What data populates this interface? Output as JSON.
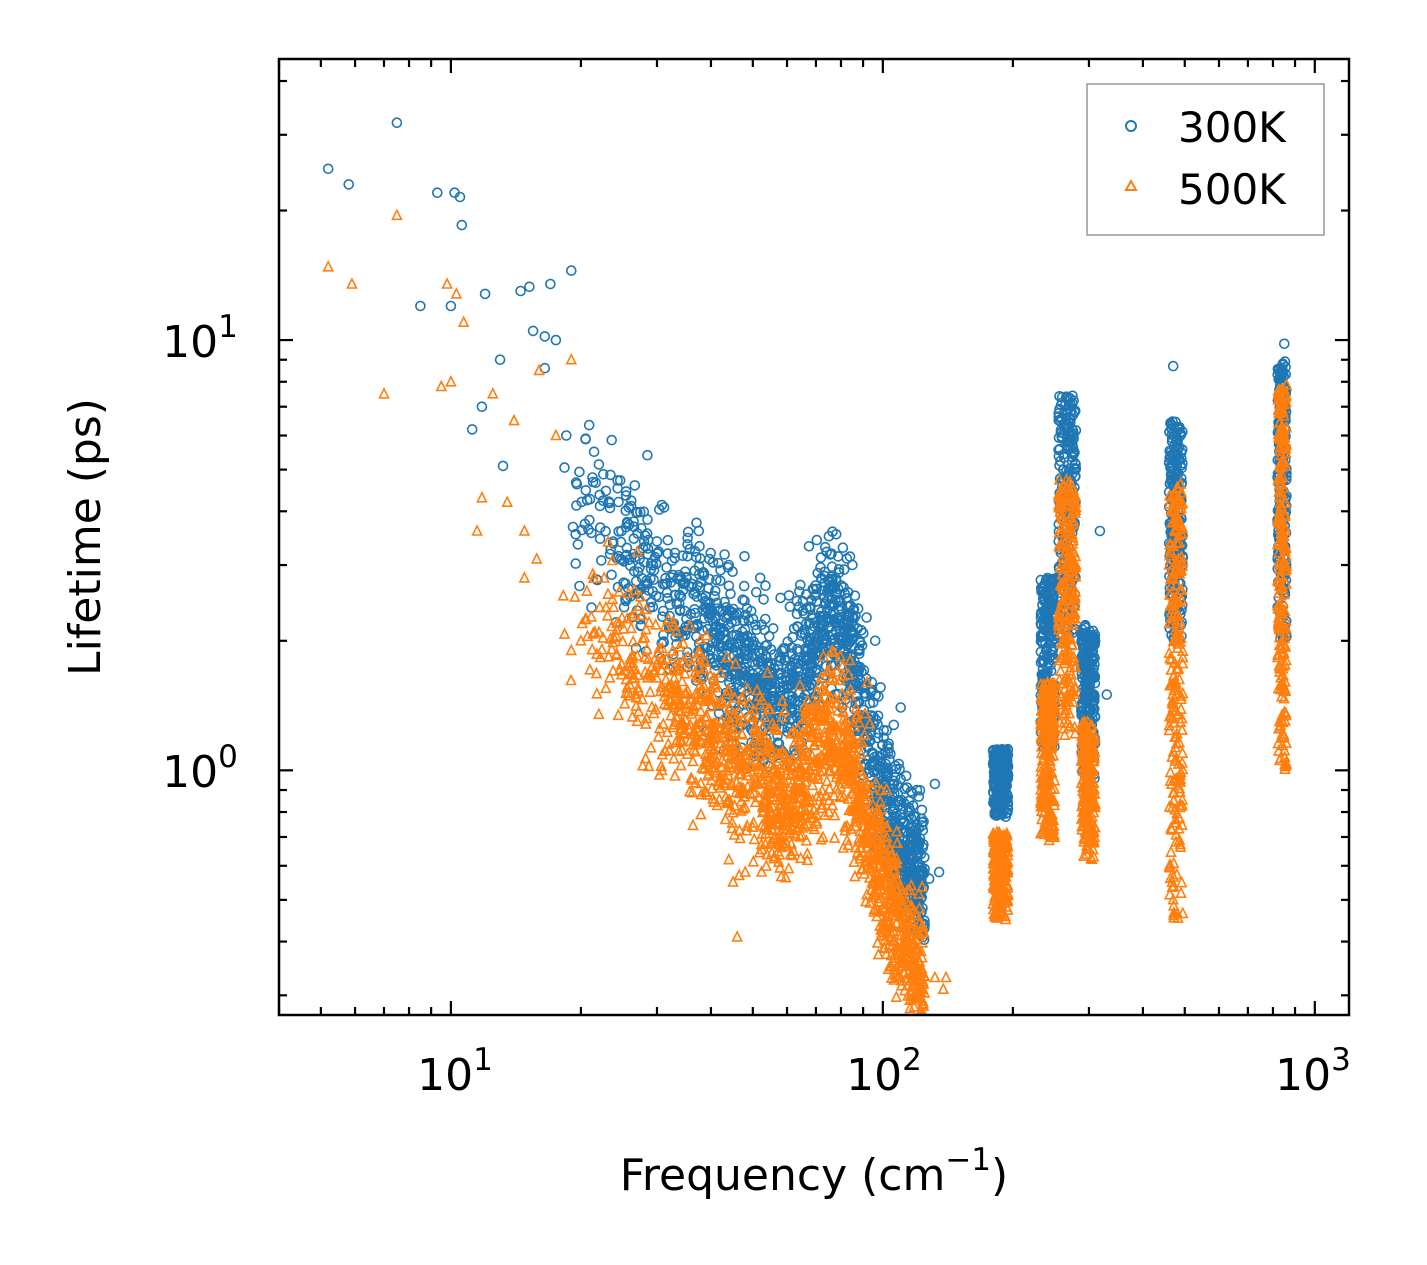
{
  "chart_data": {
    "type": "scatter",
    "xscale": "log",
    "yscale": "log",
    "xlim": [
      4.0,
      1200
    ],
    "ylim": [
      0.27,
      45
    ],
    "xlabel_main": "Frequency (cm",
    "xlabel_sup": "−1",
    "xlabel_end": ")",
    "ylabel": "Lifetime (ps)",
    "xticks": [
      {
        "base": "10",
        "exp": "1"
      },
      {
        "base": "10",
        "exp": "2"
      },
      {
        "base": "10",
        "exp": "3"
      }
    ],
    "yticks": [
      {
        "base": "10",
        "exp": "0"
      },
      {
        "base": "10",
        "exp": "1"
      }
    ],
    "legend_position": "top-right",
    "series": [
      {
        "name": "300K",
        "marker": "circle",
        "color": "#1f77b4",
        "sample_points": [
          [
            7.5,
            32
          ],
          [
            5.2,
            25
          ],
          [
            5.8,
            23
          ],
          [
            9.3,
            22
          ],
          [
            10.2,
            22
          ],
          [
            10.5,
            21.5
          ],
          [
            10.6,
            18.5
          ],
          [
            19.0,
            14.5
          ],
          [
            17.0,
            13.5
          ],
          [
            15.2,
            13.3
          ],
          [
            14.5,
            13.0
          ],
          [
            12.0,
            12.8
          ],
          [
            8.5,
            12.0
          ],
          [
            10.0,
            12.0
          ],
          [
            15.5,
            10.5
          ],
          [
            16.5,
            10.2
          ],
          [
            17.5,
            10.0
          ],
          [
            13.0,
            9.0
          ],
          [
            16.5,
            8.6
          ],
          [
            11.8,
            7.0
          ],
          [
            18.5,
            6.0
          ],
          [
            11.2,
            6.2
          ],
          [
            20.5,
            5.9
          ],
          [
            28.5,
            5.4
          ],
          [
            13.2,
            5.1
          ],
          [
            37.5,
            3.6
          ],
          [
            44.0,
            3.0
          ],
          [
            52.0,
            2.8
          ],
          [
            64.0,
            2.4
          ],
          [
            75.0,
            3.5
          ],
          [
            85.0,
            3.0
          ],
          [
            96.0,
            2.0
          ],
          [
            110.0,
            1.4
          ],
          [
            120.0,
            0.9
          ],
          [
            132.0,
            0.93
          ],
          [
            135.0,
            0.58
          ],
          [
            128.0,
            0.56
          ],
          [
            121.0,
            0.55
          ],
          [
            124.0,
            0.53
          ],
          [
            318.0,
            3.6
          ],
          [
            330.0,
            1.5
          ],
          [
            470.0,
            8.7
          ],
          [
            850.0,
            9.8
          ]
        ],
        "clusters": [
          {
            "f_range": [
              180,
              195
            ],
            "lt_range": [
              0.78,
              1.12
            ]
          },
          {
            "f_range": [
              232,
              250
            ],
            "lt_range": [
              1.1,
              2.8
            ]
          },
          {
            "f_range": [
              255,
              280
            ],
            "lt_range": [
              2.0,
              7.5
            ]
          },
          {
            "f_range": [
              288,
              310
            ],
            "lt_range": [
              0.95,
              2.2
            ]
          },
          {
            "f_range": [
              460,
              495
            ],
            "lt_range": [
              2.0,
              6.5
            ]
          },
          {
            "f_range": [
              820,
              860
            ],
            "lt_range": [
              2.0,
              9.0
            ]
          }
        ]
      },
      {
        "name": "500K",
        "marker": "triangle",
        "color": "#ff7f0e",
        "sample_points": [
          [
            7.5,
            19.5
          ],
          [
            5.2,
            14.8
          ],
          [
            5.9,
            13.5
          ],
          [
            9.8,
            13.5
          ],
          [
            10.3,
            12.8
          ],
          [
            10.7,
            11.0
          ],
          [
            19.0,
            9.0
          ],
          [
            16.0,
            8.5
          ],
          [
            10.0,
            8.0
          ],
          [
            7.0,
            7.5
          ],
          [
            9.5,
            7.8
          ],
          [
            12.5,
            7.5
          ],
          [
            14.0,
            6.5
          ],
          [
            17.5,
            6.0
          ],
          [
            11.8,
            4.3
          ],
          [
            11.5,
            3.6
          ],
          [
            13.5,
            4.2
          ],
          [
            14.8,
            3.6
          ],
          [
            15.8,
            3.1
          ],
          [
            14.8,
            2.8
          ],
          [
            20.0,
            2.0
          ],
          [
            19.0,
            1.9
          ],
          [
            22.0,
            1.35
          ],
          [
            27.0,
            1.3
          ],
          [
            33.0,
            0.97
          ],
          [
            44.0,
            0.62
          ],
          [
            46.5,
            0.57
          ],
          [
            48.0,
            0.58
          ],
          [
            45.0,
            0.55
          ],
          [
            46.0,
            0.41
          ],
          [
            72.0,
            0.69
          ],
          [
            81.0,
            0.66
          ],
          [
            84.0,
            1.8
          ],
          [
            92.0,
            1.6
          ],
          [
            115.0,
            0.34
          ],
          [
            120.0,
            0.31
          ],
          [
            132.0,
            0.33
          ],
          [
            138.0,
            0.31
          ],
          [
            140.0,
            0.33
          ]
        ],
        "clusters": [
          {
            "f_range": [
              180,
              195
            ],
            "lt_range": [
              0.45,
              0.72
            ]
          },
          {
            "f_range": [
              232,
              250
            ],
            "lt_range": [
              0.68,
              1.6
            ]
          },
          {
            "f_range": [
              255,
              280
            ],
            "lt_range": [
              1.2,
              4.8
            ]
          },
          {
            "f_range": [
              288,
              310
            ],
            "lt_range": [
              0.62,
              1.3
            ]
          },
          {
            "f_range": [
              460,
              495
            ],
            "lt_range": [
              0.45,
              4.7
            ]
          },
          {
            "f_range": [
              820,
              860
            ],
            "lt_range": [
              1.0,
              8.0
            ]
          }
        ]
      }
    ],
    "bands": [
      {
        "f_start": 18,
        "f_end": 125,
        "lt300_at_start": 4.6,
        "lt300_at_end": 0.65,
        "lt500_at_start": 2.6,
        "lt500_at_end": 0.4
      },
      {
        "f_peak": 78,
        "lt300_peak": 2.3,
        "lt500_peak": 1.2
      }
    ]
  }
}
